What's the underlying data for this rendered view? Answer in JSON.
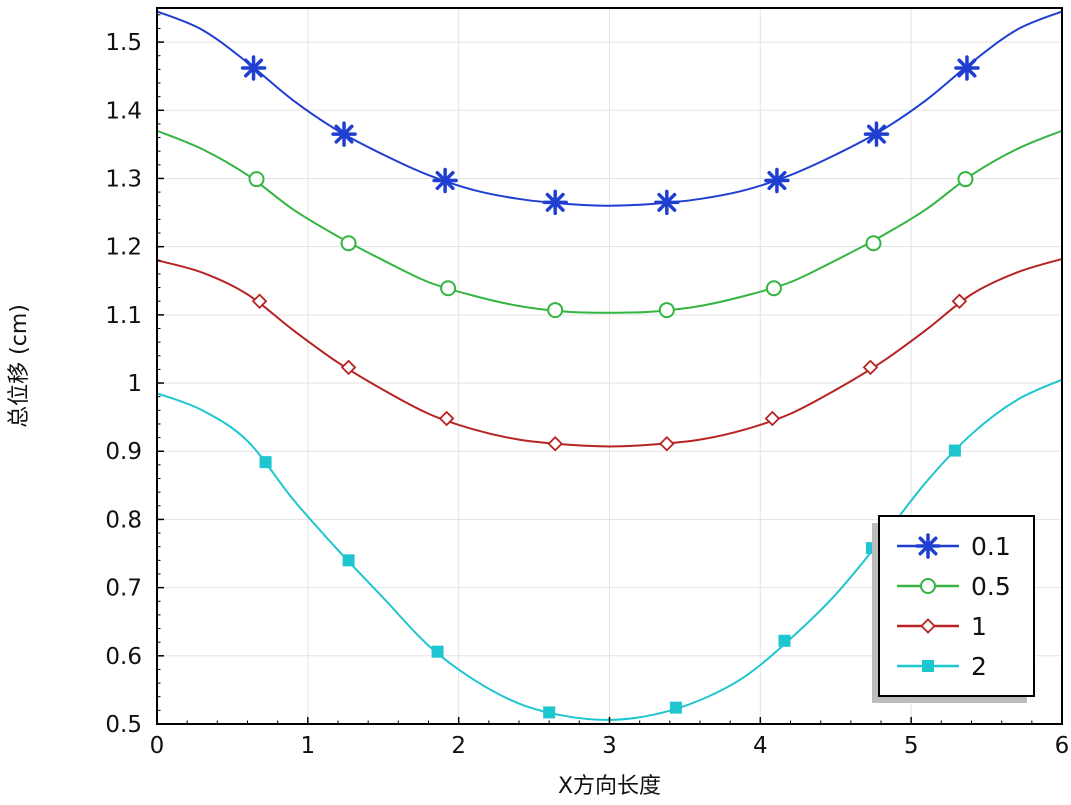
{
  "chart_data": {
    "type": "line",
    "title": "",
    "xlabel": "X方向长度",
    "ylabel": "总位移 (cm)",
    "xlim": [
      0,
      6
    ],
    "ylim": [
      0.5,
      1.55
    ],
    "grid": true,
    "legend_position": "bottom-right",
    "x_ticks": [
      "0",
      "1",
      "2",
      "3",
      "4",
      "5",
      "6"
    ],
    "y_ticks": [
      "0.5",
      "0.6",
      "0.7",
      "0.8",
      "0.9",
      "1",
      "1.1",
      "1.2",
      "1.3",
      "1.4",
      "1.5"
    ],
    "series": [
      {
        "name": "0.1",
        "color": "#1f3fd1",
        "marker": "asterisk",
        "line": [
          [
            0,
            1.545
          ],
          [
            0.3,
            1.518
          ],
          [
            0.6,
            1.47
          ],
          [
            0.9,
            1.415
          ],
          [
            1.2,
            1.37
          ],
          [
            1.5,
            1.335
          ],
          [
            1.8,
            1.305
          ],
          [
            2.1,
            1.283
          ],
          [
            2.4,
            1.27
          ],
          [
            2.7,
            1.263
          ],
          [
            3.0,
            1.26
          ],
          [
            3.3,
            1.263
          ],
          [
            3.6,
            1.27
          ],
          [
            3.9,
            1.283
          ],
          [
            4.2,
            1.305
          ],
          [
            4.5,
            1.335
          ],
          [
            4.8,
            1.37
          ],
          [
            5.1,
            1.415
          ],
          [
            5.4,
            1.47
          ],
          [
            5.7,
            1.518
          ],
          [
            6.0,
            1.545
          ]
        ],
        "markers": [
          [
            0.64,
            1.462
          ],
          [
            1.24,
            1.365
          ],
          [
            1.91,
            1.297
          ],
          [
            2.64,
            1.265
          ],
          [
            3.38,
            1.265
          ],
          [
            4.11,
            1.297
          ],
          [
            4.77,
            1.365
          ],
          [
            5.37,
            1.462
          ]
        ]
      },
      {
        "name": "0.5",
        "color": "#33b540",
        "marker": "circle",
        "line": [
          [
            0,
            1.37
          ],
          [
            0.3,
            1.343
          ],
          [
            0.6,
            1.305
          ],
          [
            0.9,
            1.255
          ],
          [
            1.2,
            1.215
          ],
          [
            1.5,
            1.18
          ],
          [
            1.8,
            1.148
          ],
          [
            2.1,
            1.128
          ],
          [
            2.4,
            1.113
          ],
          [
            2.7,
            1.105
          ],
          [
            3.0,
            1.103
          ],
          [
            3.3,
            1.105
          ],
          [
            3.6,
            1.113
          ],
          [
            3.9,
            1.128
          ],
          [
            4.2,
            1.148
          ],
          [
            4.5,
            1.18
          ],
          [
            4.8,
            1.215
          ],
          [
            5.1,
            1.255
          ],
          [
            5.4,
            1.305
          ],
          [
            5.7,
            1.343
          ],
          [
            6.0,
            1.37
          ]
        ],
        "markers": [
          [
            0.66,
            1.299
          ],
          [
            1.27,
            1.205
          ],
          [
            1.93,
            1.139
          ],
          [
            2.64,
            1.107
          ],
          [
            3.38,
            1.107
          ],
          [
            4.09,
            1.139
          ],
          [
            4.75,
            1.205
          ],
          [
            5.36,
            1.299
          ]
        ]
      },
      {
        "name": "1",
        "color": "#b82222",
        "marker": "diamond",
        "line": [
          [
            0,
            1.18
          ],
          [
            0.3,
            1.162
          ],
          [
            0.6,
            1.13
          ],
          [
            0.9,
            1.078
          ],
          [
            1.2,
            1.03
          ],
          [
            1.5,
            0.99
          ],
          [
            1.8,
            0.955
          ],
          [
            2.1,
            0.932
          ],
          [
            2.4,
            0.917
          ],
          [
            2.7,
            0.91
          ],
          [
            3.0,
            0.907
          ],
          [
            3.3,
            0.91
          ],
          [
            3.6,
            0.917
          ],
          [
            3.9,
            0.932
          ],
          [
            4.2,
            0.955
          ],
          [
            4.5,
            0.99
          ],
          [
            4.8,
            1.03
          ],
          [
            5.1,
            1.078
          ],
          [
            5.4,
            1.13
          ],
          [
            5.7,
            1.162
          ],
          [
            6.0,
            1.182
          ]
        ],
        "markers": [
          [
            0.68,
            1.12
          ],
          [
            1.27,
            1.023
          ],
          [
            1.92,
            0.948
          ],
          [
            2.64,
            0.911
          ],
          [
            3.38,
            0.911
          ],
          [
            4.08,
            0.948
          ],
          [
            4.73,
            1.023
          ],
          [
            5.32,
            1.12
          ]
        ]
      },
      {
        "name": "2",
        "color": "#1ec6cf",
        "marker": "square",
        "line": [
          [
            0,
            0.985
          ],
          [
            0.3,
            0.96
          ],
          [
            0.6,
            0.915
          ],
          [
            0.9,
            0.83
          ],
          [
            1.2,
            0.755
          ],
          [
            1.5,
            0.685
          ],
          [
            1.8,
            0.615
          ],
          [
            2.1,
            0.565
          ],
          [
            2.4,
            0.53
          ],
          [
            2.7,
            0.512
          ],
          [
            3.0,
            0.506
          ],
          [
            3.3,
            0.514
          ],
          [
            3.6,
            0.535
          ],
          [
            3.9,
            0.57
          ],
          [
            4.2,
            0.625
          ],
          [
            4.5,
            0.69
          ],
          [
            4.8,
            0.77
          ],
          [
            5.1,
            0.855
          ],
          [
            5.4,
            0.925
          ],
          [
            5.7,
            0.975
          ],
          [
            6.0,
            1.005
          ]
        ],
        "markers": [
          [
            0.72,
            0.884
          ],
          [
            1.27,
            0.74
          ],
          [
            1.86,
            0.606
          ],
          [
            2.6,
            0.517
          ],
          [
            3.44,
            0.524
          ],
          [
            4.16,
            0.622
          ],
          [
            4.74,
            0.758
          ],
          [
            5.29,
            0.901
          ]
        ]
      }
    ]
  }
}
